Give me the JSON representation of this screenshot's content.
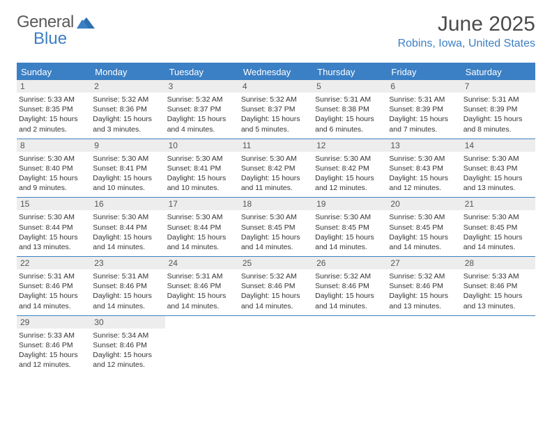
{
  "logo": {
    "word1": "General",
    "word2": "Blue"
  },
  "title": "June 2025",
  "location": "Robins, Iowa, United States",
  "colors": {
    "accent": "#3b7fc4",
    "header_bg": "#3b7fc4",
    "header_fg": "#ffffff",
    "daynum_bg": "#ededed",
    "text": "#333333"
  },
  "day_headers": [
    "Sunday",
    "Monday",
    "Tuesday",
    "Wednesday",
    "Thursday",
    "Friday",
    "Saturday"
  ],
  "weeks": [
    [
      {
        "n": "1",
        "sunrise": "5:33 AM",
        "sunset": "8:35 PM",
        "daylight": "15 hours and 2 minutes."
      },
      {
        "n": "2",
        "sunrise": "5:32 AM",
        "sunset": "8:36 PM",
        "daylight": "15 hours and 3 minutes."
      },
      {
        "n": "3",
        "sunrise": "5:32 AM",
        "sunset": "8:37 PM",
        "daylight": "15 hours and 4 minutes."
      },
      {
        "n": "4",
        "sunrise": "5:32 AM",
        "sunset": "8:37 PM",
        "daylight": "15 hours and 5 minutes."
      },
      {
        "n": "5",
        "sunrise": "5:31 AM",
        "sunset": "8:38 PM",
        "daylight": "15 hours and 6 minutes."
      },
      {
        "n": "6",
        "sunrise": "5:31 AM",
        "sunset": "8:39 PM",
        "daylight": "15 hours and 7 minutes."
      },
      {
        "n": "7",
        "sunrise": "5:31 AM",
        "sunset": "8:39 PM",
        "daylight": "15 hours and 8 minutes."
      }
    ],
    [
      {
        "n": "8",
        "sunrise": "5:30 AM",
        "sunset": "8:40 PM",
        "daylight": "15 hours and 9 minutes."
      },
      {
        "n": "9",
        "sunrise": "5:30 AM",
        "sunset": "8:41 PM",
        "daylight": "15 hours and 10 minutes."
      },
      {
        "n": "10",
        "sunrise": "5:30 AM",
        "sunset": "8:41 PM",
        "daylight": "15 hours and 10 minutes."
      },
      {
        "n": "11",
        "sunrise": "5:30 AM",
        "sunset": "8:42 PM",
        "daylight": "15 hours and 11 minutes."
      },
      {
        "n": "12",
        "sunrise": "5:30 AM",
        "sunset": "8:42 PM",
        "daylight": "15 hours and 12 minutes."
      },
      {
        "n": "13",
        "sunrise": "5:30 AM",
        "sunset": "8:43 PM",
        "daylight": "15 hours and 12 minutes."
      },
      {
        "n": "14",
        "sunrise": "5:30 AM",
        "sunset": "8:43 PM",
        "daylight": "15 hours and 13 minutes."
      }
    ],
    [
      {
        "n": "15",
        "sunrise": "5:30 AM",
        "sunset": "8:44 PM",
        "daylight": "15 hours and 13 minutes."
      },
      {
        "n": "16",
        "sunrise": "5:30 AM",
        "sunset": "8:44 PM",
        "daylight": "15 hours and 14 minutes."
      },
      {
        "n": "17",
        "sunrise": "5:30 AM",
        "sunset": "8:44 PM",
        "daylight": "15 hours and 14 minutes."
      },
      {
        "n": "18",
        "sunrise": "5:30 AM",
        "sunset": "8:45 PM",
        "daylight": "15 hours and 14 minutes."
      },
      {
        "n": "19",
        "sunrise": "5:30 AM",
        "sunset": "8:45 PM",
        "daylight": "15 hours and 14 minutes."
      },
      {
        "n": "20",
        "sunrise": "5:30 AM",
        "sunset": "8:45 PM",
        "daylight": "15 hours and 14 minutes."
      },
      {
        "n": "21",
        "sunrise": "5:30 AM",
        "sunset": "8:45 PM",
        "daylight": "15 hours and 14 minutes."
      }
    ],
    [
      {
        "n": "22",
        "sunrise": "5:31 AM",
        "sunset": "8:46 PM",
        "daylight": "15 hours and 14 minutes."
      },
      {
        "n": "23",
        "sunrise": "5:31 AM",
        "sunset": "8:46 PM",
        "daylight": "15 hours and 14 minutes."
      },
      {
        "n": "24",
        "sunrise": "5:31 AM",
        "sunset": "8:46 PM",
        "daylight": "15 hours and 14 minutes."
      },
      {
        "n": "25",
        "sunrise": "5:32 AM",
        "sunset": "8:46 PM",
        "daylight": "15 hours and 14 minutes."
      },
      {
        "n": "26",
        "sunrise": "5:32 AM",
        "sunset": "8:46 PM",
        "daylight": "15 hours and 14 minutes."
      },
      {
        "n": "27",
        "sunrise": "5:32 AM",
        "sunset": "8:46 PM",
        "daylight": "15 hours and 13 minutes."
      },
      {
        "n": "28",
        "sunrise": "5:33 AM",
        "sunset": "8:46 PM",
        "daylight": "15 hours and 13 minutes."
      }
    ],
    [
      {
        "n": "29",
        "sunrise": "5:33 AM",
        "sunset": "8:46 PM",
        "daylight": "15 hours and 12 minutes."
      },
      {
        "n": "30",
        "sunrise": "5:34 AM",
        "sunset": "8:46 PM",
        "daylight": "15 hours and 12 minutes."
      },
      null,
      null,
      null,
      null,
      null
    ]
  ],
  "labels": {
    "sunrise": "Sunrise: ",
    "sunset": "Sunset: ",
    "daylight": "Daylight: "
  }
}
